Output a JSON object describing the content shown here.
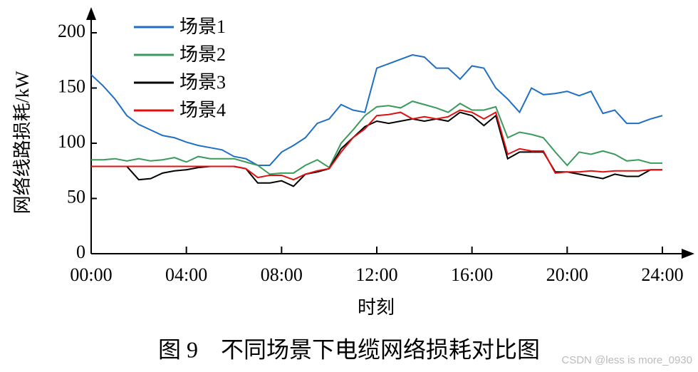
{
  "chart_data": {
    "type": "line",
    "title": "图 9　不同场景下电缆网络损耗对比图",
    "xlabel": "时刻",
    "ylabel": "网络线路损耗/kW",
    "watermark": "CSDN @less is more_0930",
    "x": [
      0,
      0.5,
      1,
      1.5,
      2,
      2.5,
      3,
      3.5,
      4,
      4.5,
      5,
      5.5,
      6,
      6.5,
      7,
      7.5,
      8,
      8.5,
      9,
      9.5,
      10,
      10.5,
      11,
      11.5,
      12,
      12.5,
      13,
      13.5,
      14,
      14.5,
      15,
      15.5,
      16,
      16.5,
      17,
      17.5,
      18,
      18.5,
      19,
      19.5,
      20,
      20.5,
      21,
      21.5,
      22,
      22.5,
      23,
      23.5,
      24
    ],
    "series": [
      {
        "name": "场景1",
        "color": "#1f6fc5",
        "values": [
          162,
          152,
          140,
          125,
          117,
          112,
          107,
          105,
          101,
          98,
          96,
          94,
          88,
          86,
          80,
          80,
          92,
          98,
          105,
          118,
          122,
          135,
          130,
          128,
          168,
          172,
          176,
          180,
          178,
          168,
          168,
          158,
          170,
          168,
          150,
          140,
          128,
          150,
          144,
          145,
          147,
          143,
          147,
          127,
          130,
          118,
          118,
          122,
          125
        ]
      },
      {
        "name": "场景2",
        "color": "#3a9a5b",
        "values": [
          85,
          85,
          86,
          84,
          86,
          84,
          85,
          87,
          83,
          88,
          86,
          86,
          86,
          83,
          80,
          72,
          73,
          73,
          80,
          85,
          78,
          100,
          112,
          125,
          133,
          134,
          132,
          138,
          135,
          132,
          128,
          136,
          130,
          130,
          133,
          105,
          110,
          108,
          105,
          92,
          80,
          92,
          90,
          93,
          90,
          84,
          85,
          82,
          82
        ]
      },
      {
        "name": "场景3",
        "color": "#000000",
        "values": [
          79,
          79,
          79,
          79,
          67,
          68,
          73,
          75,
          76,
          78,
          79,
          79,
          79,
          77,
          64,
          64,
          66,
          61,
          72,
          74,
          77,
          95,
          105,
          115,
          120,
          118,
          120,
          122,
          120,
          122,
          120,
          128,
          125,
          116,
          125,
          86,
          92,
          92,
          92,
          74,
          74,
          72,
          70,
          68,
          72,
          70,
          70,
          76,
          76
        ]
      },
      {
        "name": "场景4",
        "color": "#e01010",
        "values": [
          79,
          79,
          79,
          79,
          79,
          79,
          79,
          79,
          79,
          79,
          79,
          79,
          79,
          77,
          69,
          71,
          71,
          67,
          72,
          75,
          77,
          92,
          105,
          113,
          125,
          126,
          128,
          122,
          124,
          122,
          124,
          130,
          128,
          122,
          128,
          90,
          95,
          93,
          93,
          73,
          74,
          74,
          75,
          74,
          75,
          75,
          75,
          76,
          76
        ]
      }
    ],
    "xlim": [
      0,
      24
    ],
    "xticks": [
      {
        "value": 0,
        "label": "00:00"
      },
      {
        "value": 4,
        "label": "04:00"
      },
      {
        "value": 8,
        "label": "08:00"
      },
      {
        "value": 12,
        "label": "12:00"
      },
      {
        "value": 16,
        "label": "16:00"
      },
      {
        "value": 20,
        "label": "20:00"
      },
      {
        "value": 24,
        "label": "24:00"
      }
    ],
    "ylim": [
      0,
      200
    ],
    "yticks": [
      0,
      50,
      100,
      150,
      200
    ],
    "legend": "upper-left"
  }
}
